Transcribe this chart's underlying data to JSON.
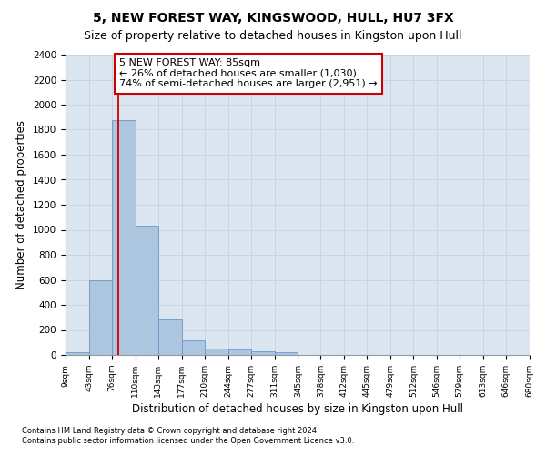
{
  "title1": "5, NEW FOREST WAY, KINGSWOOD, HULL, HU7 3FX",
  "title2": "Size of property relative to detached houses in Kingston upon Hull",
  "xlabel": "Distribution of detached houses by size in Kingston upon Hull",
  "ylabel": "Number of detached properties",
  "footnote1": "Contains HM Land Registry data © Crown copyright and database right 2024.",
  "footnote2": "Contains public sector information licensed under the Open Government Licence v3.0.",
  "bin_edges": [
    9,
    43,
    76,
    110,
    143,
    177,
    210,
    244,
    277,
    311,
    345,
    378,
    412,
    445,
    479,
    512,
    546,
    579,
    613,
    646,
    680
  ],
  "bin_counts": [
    20,
    600,
    1880,
    1030,
    285,
    120,
    50,
    45,
    30,
    20,
    0,
    0,
    0,
    0,
    0,
    0,
    0,
    0,
    0,
    0
  ],
  "bar_color": "#adc6e0",
  "bar_edge_color": "#6699cc",
  "property_size": 85,
  "vline_color": "#cc0000",
  "annotation_text": "5 NEW FOREST WAY: 85sqm\n← 26% of detached houses are smaller (1,030)\n74% of semi-detached houses are larger (2,951) →",
  "annotation_box_edgecolor": "#cc0000",
  "annotation_fontsize": 8,
  "ylim": [
    0,
    2400
  ],
  "yticks": [
    0,
    200,
    400,
    600,
    800,
    1000,
    1200,
    1400,
    1600,
    1800,
    2000,
    2200,
    2400
  ],
  "grid_color": "#c8d4e8",
  "bg_color": "#dce6f0",
  "fig_bg_color": "#ffffff",
  "title1_fontsize": 10,
  "title2_fontsize": 9
}
